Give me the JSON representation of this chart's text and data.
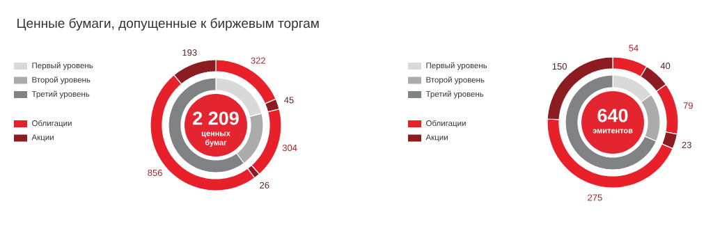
{
  "chart_data": [
    {
      "type": "donut",
      "title": "Ценные бумаги, допущенные к биржевым торгам",
      "categories": [
        "Первый уровень",
        "Второй уровень",
        "Третий уровень"
      ],
      "colors": [
        "#d9d9d9",
        "#ababab",
        "#808285"
      ],
      "values": [
        21.0,
        18.9,
        60.1
      ],
      "legend": "left",
      "annotations": [
        "2 209",
        "ценных бумаг"
      ]
    },
    {
      "type": "donut",
      "categories": [
        "Облигации",
        "Акции",
        null,
        null,
        null,
        null
      ],
      "colors": [
        "#e8202a",
        "#8c1c22",
        "#e8202a",
        "#8c1c22",
        "#e8202a",
        "#8c1c22"
      ],
      "values": [
        322,
        45,
        304,
        26,
        856,
        193
      ],
      "data_labels": true,
      "legend": "left"
    },
    {
      "type": "donut",
      "categories": [
        "Первый уровень",
        "Второй уровень",
        "Третий уровень"
      ],
      "colors": [
        "#d9d9d9",
        "#ababab",
        "#808285"
      ],
      "values": [
        15.1,
        16.4,
        68.5
      ],
      "legend": "left",
      "annotations": [
        "640",
        "эмитентов"
      ]
    },
    {
      "type": "donut",
      "categories": [
        "Облигации",
        "Акции",
        null,
        null,
        null,
        null
      ],
      "colors": [
        "#e8202a",
        "#8c1c22",
        "#e8202a",
        "#8c1c22",
        "#e8202a",
        "#8c1c22"
      ],
      "values": [
        54,
        40,
        79,
        23,
        275,
        150
      ],
      "data_labels": true,
      "legend": "left"
    }
  ]
}
